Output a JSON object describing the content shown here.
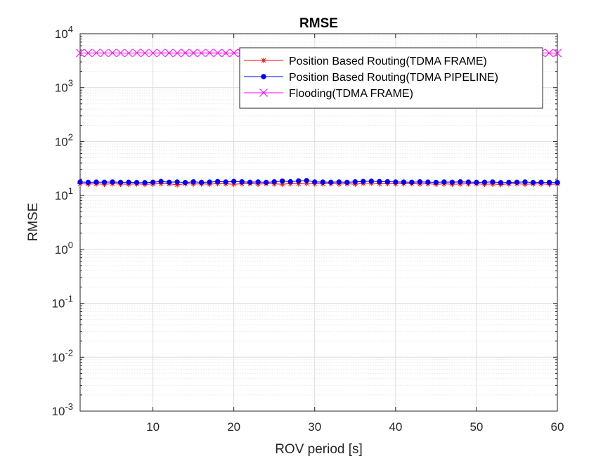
{
  "chart_data": {
    "type": "line",
    "title": "RMSE",
    "xlabel": "ROV period [s]",
    "ylabel": "RMSE",
    "xlim": [
      1,
      60
    ],
    "ylim": [
      0.001,
      10000
    ],
    "yscale": "log",
    "grid": true,
    "minor_grid": true,
    "legend_position": "top-right",
    "x_ticks": [
      10,
      20,
      30,
      40,
      50,
      60
    ],
    "x_tick_labels": [
      "10",
      "20",
      "30",
      "40",
      "50",
      "60"
    ],
    "y_ticks": [
      {
        "value": 0.001,
        "base": "10",
        "exp": "-3"
      },
      {
        "value": 0.01,
        "base": "10",
        "exp": "-2"
      },
      {
        "value": 0.1,
        "base": "10",
        "exp": "-1"
      },
      {
        "value": 1,
        "base": "10",
        "exp": "0"
      },
      {
        "value": 10,
        "base": "10",
        "exp": "1"
      },
      {
        "value": 100,
        "base": "10",
        "exp": "2"
      },
      {
        "value": 1000,
        "base": "10",
        "exp": "3"
      },
      {
        "value": 10000,
        "base": "10",
        "exp": "4"
      }
    ],
    "x": [
      1,
      2,
      3,
      4,
      5,
      6,
      7,
      8,
      9,
      10,
      11,
      12,
      13,
      14,
      15,
      16,
      17,
      18,
      19,
      20,
      21,
      22,
      23,
      24,
      25,
      26,
      27,
      28,
      29,
      30,
      31,
      32,
      33,
      34,
      35,
      36,
      37,
      38,
      39,
      40,
      41,
      42,
      43,
      44,
      45,
      46,
      47,
      48,
      49,
      50,
      51,
      52,
      53,
      54,
      55,
      56,
      57,
      58,
      59,
      60
    ],
    "series": [
      {
        "name": "Position Based Routing(TDMA FRAME)",
        "color": "#ff0000",
        "marker": "asterisk",
        "values": [
          16.5,
          16.3,
          16.4,
          16.2,
          16.5,
          16.3,
          16.2,
          16.4,
          16.1,
          16.3,
          16.6,
          16.4,
          15.8,
          16.5,
          16.3,
          16.4,
          16.2,
          16.6,
          16.4,
          16.2,
          16.5,
          16.6,
          16.3,
          16.5,
          16.4,
          16.2,
          16.6,
          16.5,
          16.8,
          16.5,
          16.4,
          16.6,
          16.3,
          16.5,
          16.2,
          16.7,
          16.9,
          16.5,
          16.6,
          16.4,
          16.5,
          16.6,
          16.3,
          16.5,
          16.1,
          16.4,
          16.2,
          16.3,
          16.5,
          16.4,
          16.2,
          16.3,
          16.0,
          16.4,
          16.5,
          16.2,
          16.3,
          16.4,
          16.1,
          16.3
        ]
      },
      {
        "name": "Position Based Routing(TDMA PIPELINE)",
        "color": "#0000ff",
        "marker": "circle",
        "values": [
          17.8,
          17.5,
          17.7,
          17.6,
          17.8,
          17.5,
          17.6,
          17.4,
          17.3,
          17.6,
          18.2,
          17.6,
          17.8,
          17.4,
          17.9,
          17.5,
          17.7,
          18.1,
          17.8,
          18.2,
          17.9,
          17.6,
          17.8,
          17.5,
          17.9,
          18.5,
          18.0,
          18.6,
          18.9,
          17.8,
          17.7,
          17.6,
          17.8,
          17.5,
          17.9,
          18.2,
          18.4,
          18.1,
          18.0,
          17.8,
          17.7,
          17.6,
          17.9,
          17.7,
          17.5,
          17.8,
          17.6,
          17.9,
          17.7,
          17.5,
          17.6,
          17.8,
          17.3,
          17.5,
          17.6,
          17.8,
          17.4,
          17.6,
          17.5,
          17.4
        ]
      },
      {
        "name": "Flooding(TDMA FRAME)",
        "color": "#ff00ff",
        "marker": "x",
        "values": [
          4400,
          4380,
          4420,
          4390,
          4410,
          4400,
          4370,
          4430,
          4400,
          4390,
          4420,
          4400,
          4380,
          4410,
          4400,
          4390,
          4420,
          4400,
          4380,
          4410,
          4400,
          4390,
          4420,
          4410,
          4380,
          4400,
          4390,
          4420,
          4400,
          4380,
          4410,
          4400,
          4390,
          4420,
          4400,
          4380,
          4410,
          4400,
          4390,
          4420,
          4400,
          4380,
          4410,
          4400,
          4390,
          4420,
          4400,
          4380,
          4410,
          4400,
          4390,
          4420,
          4400,
          4380,
          4410,
          4400,
          4390,
          4420,
          4400,
          4380
        ]
      }
    ]
  }
}
